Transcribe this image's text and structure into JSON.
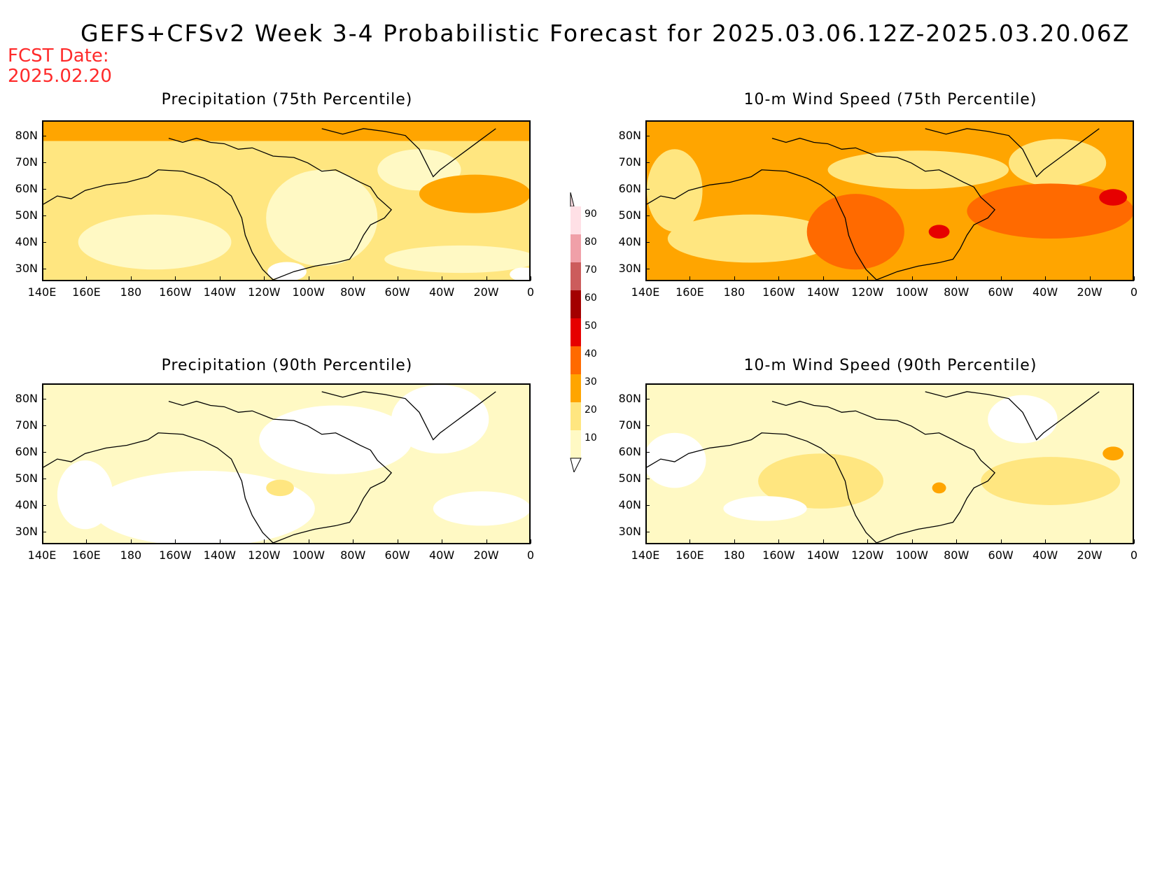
{
  "title": "GEFS+CFSv2 Week 3-4 Probabilistic Forecast for 2025.03.06.12Z-2025.03.20.06Z",
  "fcst_label": "FCST Date:",
  "fcst_date": "2025.02.20",
  "panels": [
    {
      "title": "Precipitation (75th Percentile)",
      "variable": "precip75"
    },
    {
      "title": "10-m Wind Speed (75th Percentile)",
      "variable": "wind75"
    },
    {
      "title": "Precipitation (90th Percentile)",
      "variable": "precip90"
    },
    {
      "title": "10-m Wind Speed (90th Percentile)",
      "variable": "wind90"
    }
  ],
  "lat_labels": [
    "80N",
    "70N",
    "60N",
    "50N",
    "40N",
    "30N"
  ],
  "lon_labels": [
    "140E",
    "160E",
    "180",
    "160W",
    "140W",
    "120W",
    "100W",
    "80W",
    "60W",
    "40W",
    "20W",
    "0"
  ],
  "colorbar": {
    "levels": [
      "10",
      "20",
      "30",
      "40",
      "50",
      "60",
      "70",
      "80",
      "90"
    ],
    "colors": [
      "#fff9c4",
      "#ffe680",
      "#ffa500",
      "#ff6a00",
      "#e60000",
      "#a30000",
      "#cc5c5c",
      "#f0a0a8",
      "#ffe0e6"
    ]
  }
}
